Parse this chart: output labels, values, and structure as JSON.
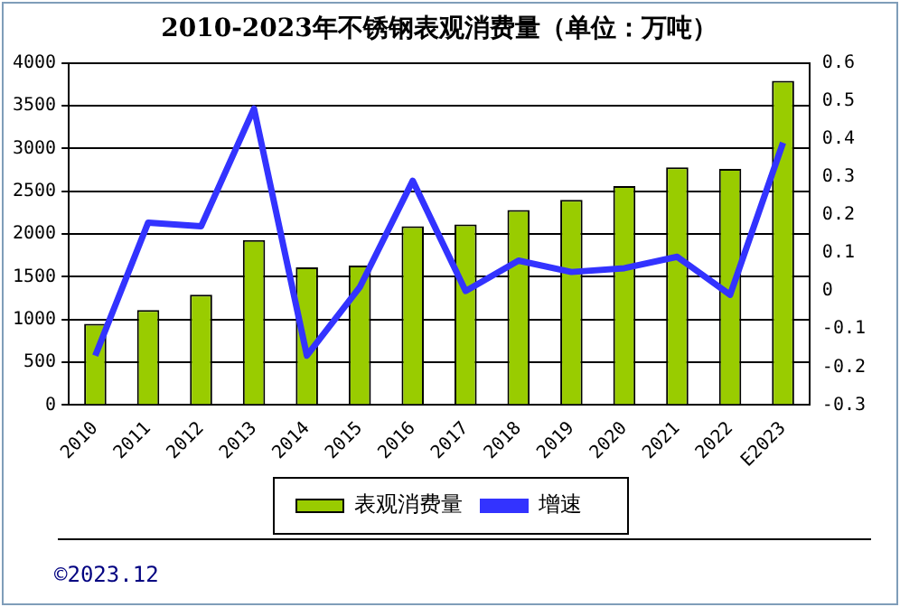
{
  "chart_data": {
    "type": "bar",
    "title": "2010-2023年不锈钢表观消费量（单位：万吨）",
    "categories": [
      "2010",
      "2011",
      "2012",
      "2013",
      "2014",
      "2015",
      "2016",
      "2017",
      "2018",
      "2019",
      "2020",
      "2021",
      "2022",
      "E2023"
    ],
    "series": [
      {
        "name": "表观消费量",
        "color": "#99cc00",
        "values": [
          950,
          1110,
          1290,
          1930,
          1610,
          1630,
          2090,
          2110,
          2280,
          2400,
          2560,
          2780,
          2760,
          3790
        ]
      },
      {
        "name": "增速",
        "type": "line",
        "color": "#3333ff",
        "axis": "y2",
        "values": [
          -0.17,
          0.18,
          0.17,
          0.48,
          -0.17,
          0.01,
          0.29,
          0.0,
          0.08,
          0.05,
          0.06,
          0.09,
          -0.01,
          0.39
        ]
      }
    ],
    "ylim": [
      0,
      4000
    ],
    "yticks": [
      0,
      500,
      1000,
      1500,
      2000,
      2500,
      3000,
      3500,
      4000
    ],
    "y2lim": [
      -0.3,
      0.6
    ],
    "y2ticks": [
      {
        "value": -0.3,
        "label": "-0.3"
      },
      {
        "value": -0.2,
        "label": "-0.2"
      },
      {
        "value": -0.1,
        "label": "-0.1"
      },
      0,
      {
        "value": 0.1,
        "label": "0.1"
      },
      {
        "value": 0.2,
        "label": "0.2"
      },
      {
        "value": 0.3,
        "label": "0.3"
      },
      {
        "value": 0.4,
        "label": "0.4"
      },
      {
        "value": 0.5,
        "label": "0.5"
      },
      {
        "value": 0.6,
        "label": "0.6"
      }
    ],
    "grid": "y",
    "legend": "bottom",
    "marker": "none",
    "line_style": "solid",
    "annotations": [
      "©2023.12"
    ]
  }
}
